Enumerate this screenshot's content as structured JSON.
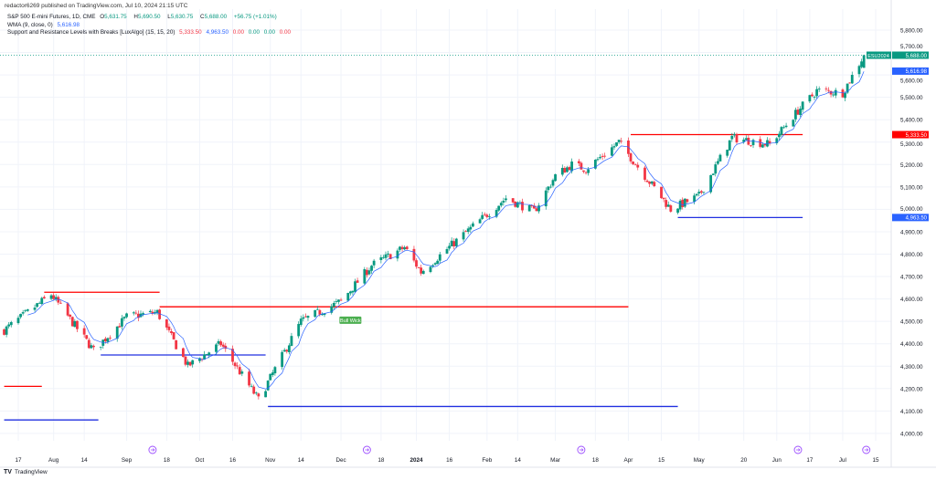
{
  "publisher": "redactor6269 published on TradingView.com, Jul 10, 2024 21:15 UTC",
  "legend": {
    "symbol": "S&P 500 E-mini Futures, 1D, CME",
    "open_label": "O",
    "open": "5,631.75",
    "high_label": "H",
    "high": "5,690.50",
    "low_label": "L",
    "low": "5,630.75",
    "close_label": "C",
    "close": "5,688.00",
    "change": "+56.75 (+1.01%)",
    "wma_name": "WMA (9, close, 0)",
    "wma_value": "5,616.98",
    "sr_name": "Support and Resistance Levels with Breaks [LuxAlgo] (15, 15, 20)",
    "sr_values": [
      "5,333.50",
      "4,963.50",
      "0.00",
      "0.00",
      "0.00",
      "0.00"
    ]
  },
  "price_labels": {
    "symbol_tag": "ESU2024",
    "last": "5,688.00",
    "wma": "5,616.98",
    "resistance": "5,333.50",
    "support": "4,963.50"
  },
  "colors": {
    "up": "#089981",
    "down": "#f23645",
    "wma": "#2962ff",
    "resistance": "#ff0000",
    "support": "#2130e0",
    "event": "#9c4dff"
  },
  "footer": {
    "logo_text": "TradingView"
  },
  "chart_data": {
    "type": "candlestick",
    "y_ticks": [
      "4,000.00",
      "4,100.00",
      "4,200.00",
      "4,300.00",
      "4,400.00",
      "4,500.00",
      "4,600.00",
      "4,700.00",
      "4,800.00",
      "4,900.00",
      "5,000.00",
      "5,100.00",
      "5,200.00",
      "5,300.00",
      "5,400.00",
      "5,500.00",
      "5,600.00",
      "5,700.00",
      "5,800.00"
    ],
    "y_range": [
      3995,
      5860
    ],
    "x_ticks": [
      {
        "date": "2023-07-17",
        "label": "17"
      },
      {
        "date": "2023-08-01",
        "label": "Aug"
      },
      {
        "date": "2023-08-14",
        "label": "14"
      },
      {
        "date": "2023-09-01",
        "label": "Sep"
      },
      {
        "date": "2023-09-18",
        "label": "18"
      },
      {
        "date": "2023-10-02",
        "label": "Oct"
      },
      {
        "date": "2023-10-16",
        "label": "16"
      },
      {
        "date": "2023-11-01",
        "label": "Nov"
      },
      {
        "date": "2023-11-14",
        "label": "14"
      },
      {
        "date": "2023-12-01",
        "label": "Dec"
      },
      {
        "date": "2023-12-18",
        "label": "18"
      },
      {
        "date": "2024-01-02",
        "label": "2024",
        "bold": true
      },
      {
        "date": "2024-01-16",
        "label": "16"
      },
      {
        "date": "2024-02-01",
        "label": "Feb"
      },
      {
        "date": "2024-02-14",
        "label": "14"
      },
      {
        "date": "2024-03-01",
        "label": "Mar"
      },
      {
        "date": "2024-03-18",
        "label": "18"
      },
      {
        "date": "2024-04-01",
        "label": "Apr"
      },
      {
        "date": "2024-04-15",
        "label": "15"
      },
      {
        "date": "2024-05-01",
        "label": "May"
      },
      {
        "date": "2024-05-20",
        "label": "20"
      },
      {
        "date": "2024-06-03",
        "label": "Jun"
      },
      {
        "date": "2024-06-17",
        "label": "17"
      },
      {
        "date": "2024-07-01",
        "label": "Jul"
      },
      {
        "date": "2024-07-15",
        "label": "15"
      }
    ],
    "close_anchors": [
      [
        "2023-07-11",
        4460
      ],
      [
        "2023-07-31",
        4620
      ],
      [
        "2023-08-18",
        4370
      ],
      [
        "2023-09-01",
        4520
      ],
      [
        "2023-09-14",
        4540
      ],
      [
        "2023-09-27",
        4300
      ],
      [
        "2023-10-11",
        4400
      ],
      [
        "2023-10-27",
        4150
      ],
      [
        "2023-11-14",
        4500
      ],
      [
        "2023-12-01",
        4590
      ],
      [
        "2023-12-14",
        4750
      ],
      [
        "2023-12-28",
        4830
      ],
      [
        "2024-01-04",
        4720
      ],
      [
        "2024-01-19",
        4860
      ],
      [
        "2024-02-09",
        5050
      ],
      [
        "2024-02-21",
        4990
      ],
      [
        "2024-03-01",
        5150
      ],
      [
        "2024-03-08",
        5200
      ],
      [
        "2024-03-14",
        5180
      ],
      [
        "2024-03-28",
        5300
      ],
      [
        "2024-04-19",
        5000
      ],
      [
        "2024-05-01",
        5060
      ],
      [
        "2024-05-15",
        5320
      ],
      [
        "2024-05-31",
        5290
      ],
      [
        "2024-06-12",
        5440
      ],
      [
        "2024-06-20",
        5530
      ],
      [
        "2024-07-01",
        5520
      ],
      [
        "2024-07-10",
        5688
      ]
    ],
    "last_bar": {
      "open": 5631.75,
      "high": 5690.5,
      "low": 5630.75,
      "close": 5688
    },
    "wma_period": 9,
    "levels": [
      {
        "kind": "resistance",
        "price": 4210,
        "from": "2023-07-11",
        "to": "2023-07-27"
      },
      {
        "kind": "support",
        "price": 4060,
        "from": "2023-07-11",
        "to": "2023-08-20"
      },
      {
        "kind": "resistance",
        "price": 4630,
        "from": "2023-07-28",
        "to": "2023-09-15"
      },
      {
        "kind": "support",
        "price": 4350,
        "from": "2023-08-21",
        "to": "2023-10-30"
      },
      {
        "kind": "resistance",
        "price": 4565,
        "from": "2023-09-15",
        "to": "2024-04-01"
      },
      {
        "kind": "support",
        "price": 4120,
        "from": "2023-10-31",
        "to": "2024-04-22"
      },
      {
        "kind": "resistance",
        "price": 5333.5,
        "from": "2024-04-02",
        "to": "2024-06-14"
      },
      {
        "kind": "support",
        "price": 4963.5,
        "from": "2024-04-22",
        "to": "2024-06-14"
      }
    ],
    "annotations": [
      {
        "text": "Bull Wick",
        "date": "2023-12-05",
        "price": 4505
      }
    ],
    "events": [
      "2023-09-12",
      "2023-12-12",
      "2024-03-12",
      "2024-06-12",
      "2024-07-11"
    ]
  }
}
